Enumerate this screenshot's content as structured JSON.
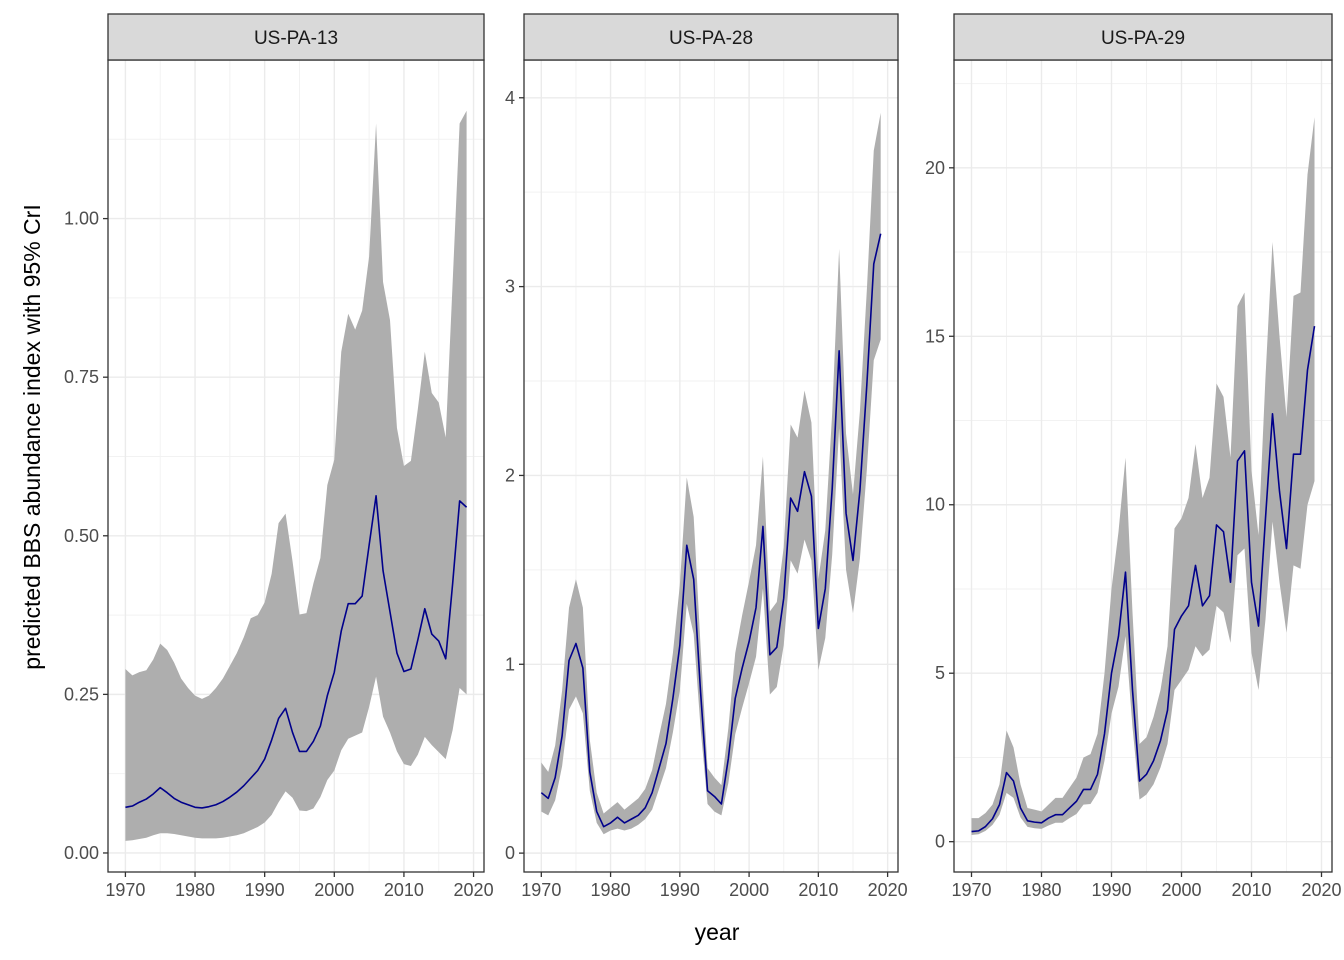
{
  "chart_data": {
    "type": "line",
    "xlabel": "year",
    "ylabel": "predicted BBS abundance index with 95% CrI",
    "line_color": "#00008B",
    "band_color": "#AEAEAE",
    "panels": [
      {
        "title": "US-PA-13",
        "xlim": [
          1967.5,
          2021.5
        ],
        "ylim": [
          -0.03,
          1.25
        ],
        "x_ticks": [
          1970,
          1980,
          1990,
          2000,
          2010,
          2020
        ],
        "x_tick_labels": [
          "1970",
          "1980",
          "1990",
          "2000",
          "2010",
          "2020"
        ],
        "y_ticks": [
          0,
          0.25,
          0.5,
          0.75,
          1.0
        ],
        "y_tick_labels": [
          "0.00",
          "0.25",
          "0.50",
          "0.75",
          "1.00"
        ],
        "x": [
          1970,
          1971,
          1972,
          1973,
          1974,
          1975,
          1976,
          1977,
          1978,
          1979,
          1980,
          1981,
          1982,
          1983,
          1984,
          1985,
          1986,
          1987,
          1988,
          1989,
          1990,
          1991,
          1992,
          1993,
          1994,
          1995,
          1996,
          1997,
          1998,
          1999,
          2000,
          2001,
          2002,
          2003,
          2004,
          2005,
          2006,
          2007,
          2008,
          2009,
          2010,
          2011,
          2012,
          2013,
          2014,
          2015,
          2016,
          2017,
          2018,
          2019
        ],
        "series": [
          {
            "name": "estimate",
            "values": [
              0.072,
              0.074,
              0.08,
              0.085,
              0.093,
              0.103,
              0.095,
              0.086,
              0.08,
              0.076,
              0.072,
              0.071,
              0.073,
              0.076,
              0.081,
              0.088,
              0.096,
              0.106,
              0.118,
              0.13,
              0.148,
              0.178,
              0.212,
              0.228,
              0.19,
              0.16,
              0.16,
              0.176,
              0.2,
              0.248,
              0.285,
              0.35,
              0.393,
              0.393,
              0.405,
              0.485,
              0.563,
              0.445,
              0.38,
              0.315,
              0.286,
              0.29,
              0.336,
              0.385,
              0.345,
              0.334,
              0.306,
              0.425,
              0.555,
              0.545
            ]
          },
          {
            "name": "lower 95% CrI",
            "values": [
              0.019,
              0.02,
              0.022,
              0.024,
              0.028,
              0.031,
              0.031,
              0.03,
              0.028,
              0.026,
              0.024,
              0.023,
              0.023,
              0.023,
              0.024,
              0.026,
              0.028,
              0.031,
              0.036,
              0.041,
              0.048,
              0.06,
              0.08,
              0.097,
              0.087,
              0.067,
              0.066,
              0.07,
              0.088,
              0.115,
              0.13,
              0.162,
              0.18,
              0.185,
              0.19,
              0.23,
              0.278,
              0.215,
              0.19,
              0.16,
              0.14,
              0.137,
              0.155,
              0.183,
              0.17,
              0.159,
              0.148,
              0.194,
              0.26,
              0.25
            ]
          },
          {
            "name": "upper 95% CrI",
            "values": [
              0.29,
              0.28,
              0.285,
              0.288,
              0.305,
              0.33,
              0.32,
              0.3,
              0.275,
              0.26,
              0.248,
              0.243,
              0.248,
              0.26,
              0.275,
              0.295,
              0.315,
              0.34,
              0.37,
              0.375,
              0.395,
              0.44,
              0.52,
              0.535,
              0.46,
              0.376,
              0.378,
              0.425,
              0.465,
              0.58,
              0.62,
              0.79,
              0.85,
              0.825,
              0.855,
              0.94,
              1.15,
              0.9,
              0.84,
              0.67,
              0.61,
              0.618,
              0.7,
              0.79,
              0.725,
              0.71,
              0.655,
              0.9,
              1.15,
              1.17
            ]
          }
        ]
      },
      {
        "title": "US-PA-28",
        "xlim": [
          1967.5,
          2021.5
        ],
        "ylim": [
          -0.1,
          4.2
        ],
        "x_ticks": [
          1970,
          1980,
          1990,
          2000,
          2010,
          2020
        ],
        "x_tick_labels": [
          "1970",
          "1980",
          "1990",
          "2000",
          "2010",
          "2020"
        ],
        "y_ticks": [
          0,
          1,
          2,
          3,
          4
        ],
        "y_tick_labels": [
          "0",
          "1",
          "2",
          "3",
          "4"
        ],
        "x": [
          1970,
          1971,
          1972,
          1973,
          1974,
          1975,
          1976,
          1977,
          1978,
          1979,
          1980,
          1981,
          1982,
          1983,
          1984,
          1985,
          1986,
          1987,
          1988,
          1989,
          1990,
          1991,
          1992,
          1993,
          1994,
          1995,
          1996,
          1997,
          1998,
          1999,
          2000,
          2001,
          2002,
          2003,
          2004,
          2005,
          2006,
          2007,
          2008,
          2009,
          2010,
          2011,
          2012,
          2013,
          2014,
          2015,
          2016,
          2017,
          2018,
          2019
        ],
        "series": [
          {
            "name": "estimate",
            "values": [
              0.32,
              0.29,
              0.4,
              0.62,
              1.02,
              1.11,
              0.98,
              0.43,
              0.22,
              0.14,
              0.16,
              0.19,
              0.16,
              0.18,
              0.2,
              0.24,
              0.32,
              0.45,
              0.58,
              0.82,
              1.1,
              1.63,
              1.45,
              0.85,
              0.33,
              0.3,
              0.26,
              0.5,
              0.82,
              0.98,
              1.12,
              1.3,
              1.73,
              1.05,
              1.09,
              1.35,
              1.88,
              1.81,
              2.02,
              1.89,
              1.19,
              1.4,
              1.93,
              2.66,
              1.8,
              1.55,
              1.92,
              2.48,
              3.12,
              3.28
            ]
          },
          {
            "name": "lower 95% CrI",
            "values": [
              0.22,
              0.2,
              0.28,
              0.46,
              0.76,
              0.83,
              0.74,
              0.33,
              0.16,
              0.1,
              0.12,
              0.13,
              0.12,
              0.13,
              0.15,
              0.18,
              0.23,
              0.34,
              0.45,
              0.64,
              0.86,
              1.32,
              1.16,
              0.66,
              0.26,
              0.22,
              0.2,
              0.37,
              0.63,
              0.77,
              0.9,
              1.04,
              1.4,
              0.84,
              0.88,
              1.1,
              1.55,
              1.48,
              1.66,
              1.55,
              0.97,
              1.14,
              1.58,
              2.25,
              1.5,
              1.27,
              1.56,
              2.03,
              2.61,
              2.72
            ]
          },
          {
            "name": "upper 95% CrI",
            "values": [
              0.48,
              0.43,
              0.57,
              0.86,
              1.3,
              1.45,
              1.3,
              0.6,
              0.32,
              0.21,
              0.24,
              0.27,
              0.23,
              0.26,
              0.29,
              0.34,
              0.44,
              0.62,
              0.79,
              1.06,
              1.42,
              1.99,
              1.78,
              1.09,
              0.45,
              0.4,
              0.36,
              0.66,
              1.06,
              1.26,
              1.44,
              1.63,
              2.1,
              1.28,
              1.33,
              1.62,
              2.27,
              2.2,
              2.45,
              2.28,
              1.45,
              1.71,
              2.33,
              3.2,
              2.22,
              1.9,
              2.34,
              2.98,
              3.72,
              3.92
            ]
          }
        ]
      },
      {
        "title": "US-PA-29",
        "xlim": [
          1967.5,
          2021.5
        ],
        "ylim": [
          -0.9,
          23.2
        ],
        "x_ticks": [
          1970,
          1980,
          1990,
          2000,
          2010,
          2020
        ],
        "x_tick_labels": [
          "1970",
          "1980",
          "1990",
          "2000",
          "2010",
          "2020"
        ],
        "y_ticks": [
          0,
          5,
          10,
          15,
          20
        ],
        "y_tick_labels": [
          "0",
          "5",
          "10",
          "15",
          "20"
        ],
        "x": [
          1970,
          1971,
          1972,
          1973,
          1974,
          1975,
          1976,
          1977,
          1978,
          1979,
          1980,
          1981,
          1982,
          1983,
          1984,
          1985,
          1986,
          1987,
          1988,
          1989,
          1990,
          1991,
          1992,
          1993,
          1994,
          1995,
          1996,
          1997,
          1998,
          1999,
          2000,
          2001,
          2002,
          2003,
          2004,
          2005,
          2006,
          2007,
          2008,
          2009,
          2010,
          2011,
          2012,
          2013,
          2014,
          2015,
          2016,
          2017,
          2018,
          2019
        ],
        "series": [
          {
            "name": "estimate",
            "values": [
              0.3,
              0.32,
              0.45,
              0.68,
              1.1,
              2.05,
              1.8,
              1.0,
              0.62,
              0.58,
              0.56,
              0.7,
              0.8,
              0.8,
              1.0,
              1.2,
              1.55,
              1.55,
              2.0,
              3.2,
              5.0,
              6.1,
              8.0,
              4.5,
              1.8,
              2.0,
              2.4,
              3.0,
              3.9,
              6.3,
              6.7,
              7.0,
              8.2,
              7.0,
              7.3,
              9.4,
              9.2,
              7.7,
              11.3,
              11.6,
              7.7,
              6.4,
              9.6,
              12.7,
              10.4,
              8.7,
              11.5,
              11.5,
              14.0,
              15.3
            ]
          },
          {
            "name": "lower 95% CrI",
            "values": [
              0.2,
              0.22,
              0.32,
              0.5,
              0.8,
              1.45,
              1.3,
              0.72,
              0.44,
              0.4,
              0.38,
              0.48,
              0.56,
              0.56,
              0.7,
              0.82,
              1.1,
              1.12,
              1.45,
              2.4,
              3.8,
              4.6,
              6.1,
              3.4,
              1.25,
              1.4,
              1.7,
              2.2,
              2.9,
              4.5,
              4.8,
              5.1,
              5.8,
              5.5,
              5.7,
              7.0,
              6.8,
              5.9,
              8.5,
              8.7,
              5.6,
              4.5,
              6.6,
              9.5,
              7.7,
              6.2,
              8.2,
              8.1,
              10.0,
              10.7
            ]
          },
          {
            "name": "upper 95% CrI",
            "values": [
              0.7,
              0.7,
              0.85,
              1.1,
              1.7,
              3.3,
              2.8,
              1.7,
              1.0,
              0.95,
              0.9,
              1.1,
              1.3,
              1.3,
              1.6,
              1.9,
              2.5,
              2.6,
              3.2,
              5.0,
              7.5,
              9.2,
              11.4,
              6.8,
              2.9,
              3.1,
              3.7,
              4.5,
              5.8,
              9.3,
              9.6,
              10.2,
              11.8,
              10.2,
              10.8,
              13.6,
              13.2,
              11.4,
              15.9,
              16.3,
              11.0,
              9.1,
              13.8,
              17.8,
              15.0,
              12.6,
              16.2,
              16.3,
              19.8,
              21.5
            ]
          }
        ]
      }
    ]
  }
}
